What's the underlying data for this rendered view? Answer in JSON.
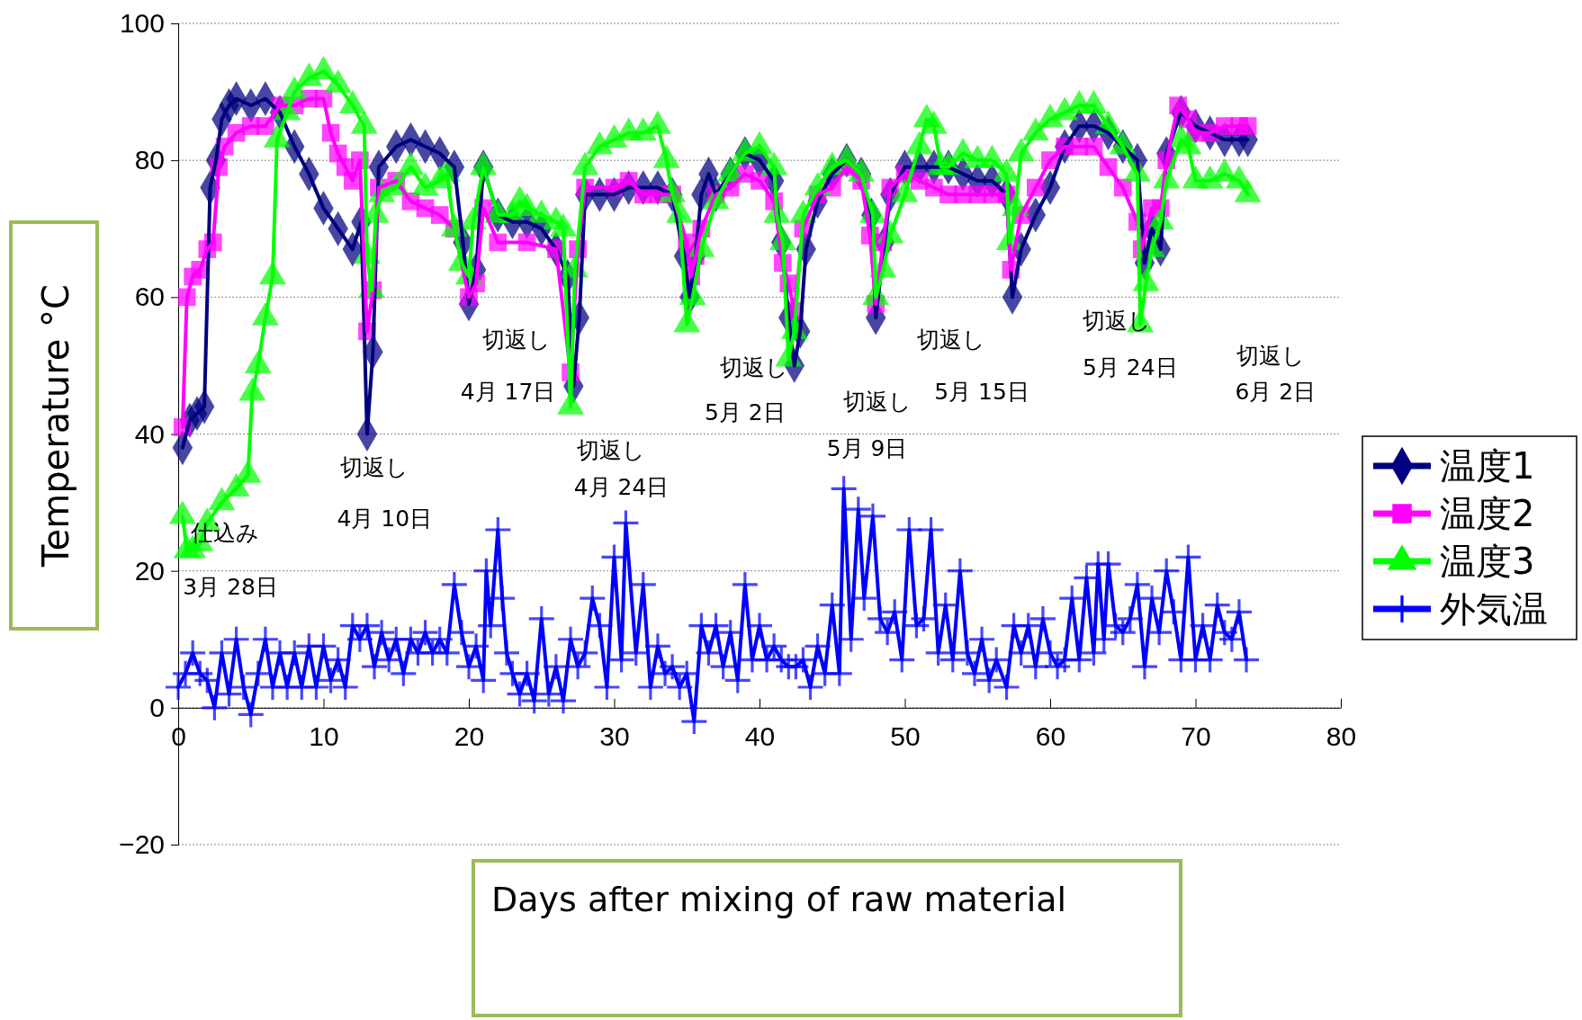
{
  "chart_data": {
    "type": "line",
    "xlabel": "Days after mixing of raw material",
    "ylabel": "Temperature °C",
    "xlim": [
      0,
      80
    ],
    "xticks": [
      0,
      10,
      20,
      30,
      40,
      50,
      60,
      70,
      80
    ],
    "ylim": [
      -20,
      100
    ],
    "yticks": [
      {
        "value": -20,
        "label": "−20"
      },
      0,
      20,
      40,
      60,
      80,
      100
    ],
    "grid": "y",
    "legend": "right",
    "line_style": "solid",
    "series": [
      {
        "name": "温度1",
        "color": "#000080",
        "marker": "diamond",
        "x": [
          0.3,
          0.8,
          1.3,
          1.8,
          2.2,
          2.6,
          3,
          3.5,
          4,
          5,
          6,
          7,
          8,
          9,
          10,
          11,
          12,
          12.6,
          13,
          13.4,
          13.8,
          15,
          16,
          17,
          18,
          19,
          19.6,
          20,
          20.5,
          21,
          22,
          23,
          24,
          25,
          26,
          26.8,
          27.2,
          27.6,
          28,
          29,
          30,
          31,
          32,
          33,
          34,
          34.8,
          35.2,
          35.6,
          36,
          36.5,
          37,
          38,
          39,
          40,
          41,
          41.5,
          42,
          42.4,
          42.8,
          43.2,
          44,
          45,
          46,
          47,
          47.7,
          48,
          48.6,
          49,
          50,
          51,
          52,
          53,
          54,
          55,
          56,
          57,
          57.4,
          58,
          59,
          60,
          61,
          62,
          63,
          64,
          65,
          66,
          66.5,
          67,
          67.6,
          68,
          69,
          70,
          71,
          72,
          73,
          73.6
        ],
        "values": [
          38,
          42,
          43,
          44,
          76,
          80,
          86,
          88,
          89,
          88,
          89,
          87,
          82,
          78,
          73,
          70,
          67,
          71,
          40,
          52,
          79,
          82,
          83,
          82,
          81,
          79,
          68,
          59,
          64,
          79,
          72,
          71,
          71,
          70,
          67,
          63,
          47,
          57,
          75,
          75,
          75,
          76,
          76,
          76,
          75,
          66,
          60,
          66,
          75,
          78,
          75,
          78,
          81,
          80,
          77,
          68,
          57,
          50,
          55,
          67,
          74,
          78,
          80,
          78,
          72,
          57,
          68,
          75,
          79,
          79,
          79,
          79,
          78,
          77,
          77,
          75,
          60,
          67,
          72,
          76,
          82,
          85,
          85,
          84,
          82,
          80,
          65,
          70,
          67,
          81,
          87,
          85,
          84,
          83,
          83,
          83
        ]
      },
      {
        "name": "温度2",
        "color": "#ff00ff",
        "marker": "square",
        "x": [
          0.3,
          0.6,
          1,
          1.5,
          2,
          2.4,
          2.8,
          3.2,
          4,
          5,
          6,
          7,
          8,
          9,
          10,
          10.5,
          11,
          11.5,
          12,
          12.5,
          13,
          13.4,
          13.8,
          15,
          16,
          17,
          18,
          19,
          20,
          20.5,
          21,
          22,
          24,
          26,
          27,
          27.5,
          28,
          30,
          31,
          32,
          33,
          34,
          35,
          35.3,
          35.6,
          36,
          37,
          38,
          39,
          40,
          41,
          41.6,
          42,
          42.4,
          43,
          44,
          45,
          46,
          47,
          47.6,
          48,
          48.5,
          49,
          50,
          51,
          52,
          53,
          54,
          55,
          56,
          57,
          57.3,
          58,
          59,
          60,
          61,
          62,
          63,
          64,
          65,
          66,
          66.3,
          67,
          67.6,
          68,
          68.8,
          69.5,
          70,
          71,
          72,
          73,
          73.6
        ],
        "values": [
          41,
          60,
          63,
          64,
          67,
          68,
          79,
          82,
          84,
          85,
          85,
          88,
          88,
          89,
          89,
          84,
          81,
          79,
          77,
          80,
          55,
          61,
          76,
          77,
          74,
          73,
          72,
          70,
          60,
          62,
          73,
          68,
          68,
          67,
          49,
          67,
          76,
          76,
          77,
          75,
          75,
          75,
          68,
          63,
          66,
          70,
          75,
          76,
          78,
          77,
          74,
          65,
          62,
          58,
          70,
          75,
          76,
          79,
          77,
          69,
          59,
          68,
          76,
          78,
          77,
          76,
          75,
          75,
          75,
          75,
          75,
          64,
          72,
          76,
          80,
          82,
          82,
          82,
          79,
          76,
          71,
          67,
          73,
          73,
          80,
          88,
          86,
          84,
          84,
          85,
          85,
          85
        ]
      },
      {
        "name": "温度3",
        "color": "#00ff00",
        "marker": "triangle",
        "x": [
          0.3,
          0.6,
          1,
          1.5,
          2,
          3,
          4,
          4.8,
          5.1,
          5.5,
          6,
          6.5,
          6.8,
          7.5,
          8,
          9,
          10,
          11,
          12,
          12.8,
          13,
          13.3,
          13.6,
          14,
          15,
          16,
          17,
          18,
          18.5,
          19,
          19.5,
          20,
          20.3,
          21,
          22,
          23,
          23.5,
          24,
          25,
          26,
          26.5,
          27,
          27.3,
          28,
          29,
          30,
          31,
          32,
          33,
          33.6,
          34,
          34.5,
          35,
          35.4,
          36,
          37,
          38,
          39,
          40,
          41,
          41.2,
          41.6,
          42,
          42.4,
          43,
          44,
          45,
          46,
          47,
          47.8,
          48,
          48.5,
          49,
          50,
          51,
          51.5,
          52,
          52.5,
          53,
          54,
          55,
          56,
          57,
          57.2,
          57.6,
          58,
          59,
          60,
          61,
          62,
          63,
          64,
          65,
          66,
          66.2,
          66.6,
          67,
          67.6,
          68,
          69,
          69.5,
          70,
          71,
          72,
          73,
          73.6
        ],
        "values": [
          28,
          23,
          23,
          24,
          27,
          30,
          32,
          34,
          46,
          50,
          57,
          63,
          83,
          87,
          90,
          92,
          93,
          91,
          88,
          85,
          66,
          61,
          72,
          75,
          76,
          79,
          76,
          77,
          78,
          70,
          65,
          63,
          71,
          79,
          72,
          72,
          74,
          73,
          72,
          71,
          70,
          44,
          64,
          79,
          82,
          83,
          84,
          84,
          85,
          80,
          75,
          72,
          56,
          60,
          67,
          74,
          78,
          81,
          82,
          79,
          72,
          68,
          51,
          55,
          72,
          76,
          79,
          80,
          78,
          72,
          60,
          64,
          69,
          75,
          82,
          86,
          85,
          79,
          79,
          81,
          80,
          80,
          78,
          68,
          73,
          81,
          84,
          86,
          87,
          88,
          88,
          85,
          82,
          78,
          56,
          62,
          67,
          71,
          77,
          83,
          82,
          77,
          77,
          78,
          77,
          75
        ]
      },
      {
        "name": "外気温",
        "color": "#0000ff",
        "marker": "cross",
        "x": [
          0,
          0.5,
          1,
          1.5,
          2,
          2.5,
          3,
          3.5,
          4,
          4.5,
          5,
          5.5,
          6,
          6.5,
          7,
          7.5,
          8,
          8.5,
          9,
          9.5,
          10,
          10.5,
          11,
          11.5,
          12,
          12.5,
          13,
          13.5,
          14,
          14.5,
          15,
          15.5,
          16,
          16.5,
          17,
          17.5,
          18,
          18.5,
          19,
          19.5,
          20,
          20.5,
          21,
          21.2,
          21.5,
          22,
          22.3,
          22.6,
          23,
          23.5,
          24,
          24.5,
          25,
          25.5,
          26,
          26.5,
          27,
          27.5,
          28,
          28.5,
          29,
          29.5,
          30,
          30.5,
          30.8,
          31.5,
          32,
          32.5,
          33,
          33.5,
          34,
          34.5,
          35,
          35.5,
          36,
          36.5,
          37,
          37.5,
          38,
          38.5,
          39,
          39.5,
          40,
          40.5,
          41,
          41.5,
          42,
          42.5,
          43,
          43.5,
          44,
          44.5,
          45,
          45.5,
          45.8,
          46.3,
          46.8,
          47.2,
          47.8,
          48.3,
          48.8,
          49.3,
          49.8,
          50.3,
          50.8,
          51.3,
          51.8,
          52.3,
          52.8,
          53.3,
          53.8,
          54.3,
          54.8,
          55.3,
          55.8,
          56.3,
          57,
          57.5,
          58,
          58.5,
          59,
          59.5,
          60,
          60.5,
          61,
          61.5,
          62,
          62.5,
          63,
          63.3,
          63.7,
          64,
          64.5,
          65,
          65.5,
          66,
          66.5,
          67,
          67.5,
          68,
          68.5,
          69,
          69.5,
          70,
          70.5,
          71,
          71.5,
          72,
          72.5,
          73,
          73.5
        ],
        "values": [
          3,
          5,
          8,
          5,
          4,
          0,
          8,
          2,
          10,
          3,
          -1,
          5,
          10,
          3,
          8,
          3,
          8,
          3,
          9,
          3,
          9,
          4,
          7,
          3,
          12,
          10,
          12,
          6,
          11,
          7,
          10,
          5,
          10,
          8,
          11,
          8,
          10,
          8,
          18,
          11,
          6,
          9,
          4,
          20,
          12,
          26,
          16,
          8,
          5,
          2,
          5,
          1,
          13,
          2,
          6,
          1,
          10,
          6,
          8,
          16,
          12,
          3,
          22,
          7,
          27,
          8,
          18,
          3,
          9,
          5,
          6,
          3,
          5,
          -2,
          12,
          8,
          12,
          6,
          11,
          4,
          18,
          7,
          12,
          7,
          9,
          7,
          6,
          6,
          7,
          3,
          9,
          5,
          15,
          5,
          32,
          10,
          29,
          16,
          28,
          13,
          11,
          14,
          7,
          26,
          12,
          13,
          26,
          8,
          15,
          7,
          20,
          8,
          5,
          10,
          4,
          7,
          3,
          12,
          8,
          12,
          6,
          13,
          8,
          6,
          7,
          16,
          7,
          19,
          8,
          21,
          10,
          21,
          12,
          11,
          13,
          18,
          6,
          16,
          11,
          20,
          14,
          7,
          22,
          7,
          12,
          7,
          15,
          11,
          10,
          14,
          7
        ]
      }
    ],
    "annotations": [
      "仕込み",
      "3月 28日",
      "切返し",
      "4月 10日",
      "切返し",
      "4月 17日",
      "切返し",
      "4月 24日",
      "切返し",
      "5月 2日",
      "切返し",
      "5月 9日",
      "切返し",
      "5月 15日",
      "切返し",
      "5月 24日",
      "切返し",
      "6月 2日"
    ]
  }
}
